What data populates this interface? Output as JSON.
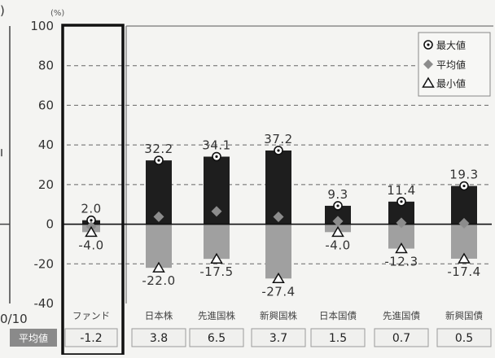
{
  "chart_data": {
    "type": "bar",
    "unit_label": "(%)",
    "left_fragment_labels": [
      ")",
      "0/10"
    ],
    "ylim": [
      -40,
      100
    ],
    "y_ticks": [
      100,
      80,
      60,
      40,
      20,
      0,
      -20,
      -40
    ],
    "y_tick_labels": [
      "100",
      "80",
      "60",
      "40",
      "20",
      "0",
      "-20",
      "-40"
    ],
    "categories": [
      "ファンド",
      "日本株",
      "先進国株",
      "新興国株",
      "日本国債",
      "先進国債",
      "新興国債"
    ],
    "series": [
      {
        "name": "最大値",
        "values": [
          2.0,
          32.2,
          34.1,
          37.2,
          9.3,
          11.4,
          19.3
        ],
        "labels": [
          "2.0",
          "32.2",
          "34.1",
          "37.2",
          "9.3",
          "11.4",
          "19.3"
        ]
      },
      {
        "name": "平均値",
        "values": [
          -1.2,
          3.8,
          6.5,
          3.7,
          1.5,
          0.7,
          0.5
        ]
      },
      {
        "name": "最小値",
        "values": [
          -4.0,
          -22.0,
          -17.5,
          -27.4,
          -4.0,
          -12.3,
          -17.4
        ],
        "labels": [
          "-4.0",
          "-22.0",
          "-17.5",
          "-27.4",
          "-4.0",
          "-12.3",
          "-17.4"
        ]
      }
    ],
    "average_row": {
      "header": "平均値",
      "values": [
        "-1.2",
        "3.8",
        "6.5",
        "3.7",
        "1.5",
        "0.7",
        "0.5"
      ]
    },
    "legend_position": "top-right",
    "grid": true,
    "colors": {
      "max_bar": "#1e1e1e",
      "min_bar": "#a0a0a0",
      "avg_marker": "#8c8c8c",
      "background": "#f4f4f2",
      "avg_header_bg": "#8a8a8a",
      "fund_box": "#111111"
    }
  }
}
